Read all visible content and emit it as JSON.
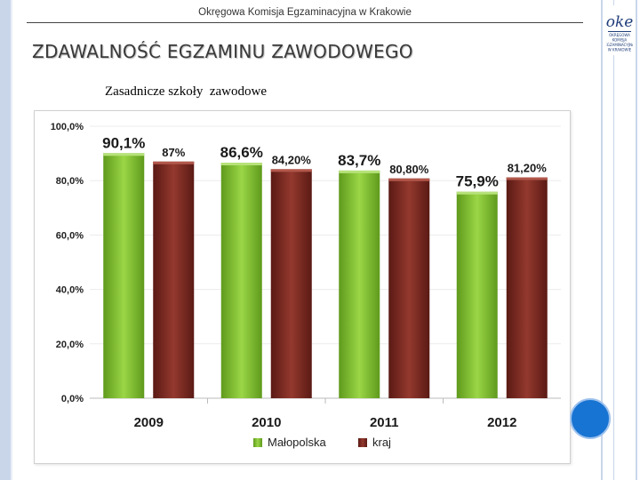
{
  "header": {
    "organization": "Okręgowa Komisja Egzaminacyjna w Krakowie"
  },
  "logo": {
    "text": "oke",
    "caption_lines": [
      "OKRĘGOWA",
      "KOMISJA",
      "EGZAMINACYJNA",
      "W KRAKOWIE"
    ],
    "color": "#1f3d7a"
  },
  "slide": {
    "title": "ZDAWALNOŚĆ EGZAMINU ZAWODOWEGO",
    "subtitle": "Zasadnicze szkoły  zawodowe"
  },
  "colors": {
    "malopolska": "#7bb82e",
    "kraj": "#7a2a22",
    "accent_circle": "#1874d2",
    "side_bar": "#c9d6ea"
  },
  "chart_data": {
    "type": "bar",
    "categories": [
      "2009",
      "2010",
      "2011",
      "2012"
    ],
    "series": [
      {
        "name": "Małopolska",
        "values": [
          90.1,
          86.6,
          83.7,
          75.9
        ],
        "labels": [
          "90,1%",
          "86,6%",
          "83,7%",
          "75,9%"
        ]
      },
      {
        "name": "kraj",
        "values": [
          87,
          84.2,
          80.8,
          81.2
        ],
        "labels": [
          "87%",
          "84,20%",
          "80,80%",
          "81,20%"
        ]
      }
    ],
    "ylim": [
      0,
      100
    ],
    "yticks": [
      "0,0%",
      "20,0%",
      "40,0%",
      "60,0%",
      "80,0%",
      "100,0%"
    ],
    "legend": "bottom",
    "grid": true
  }
}
